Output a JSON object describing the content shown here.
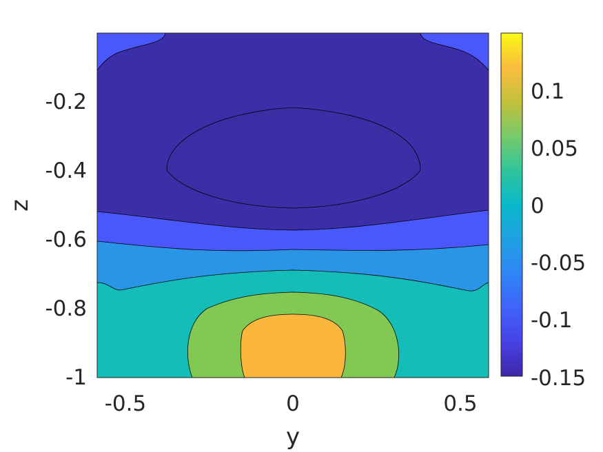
{
  "chart_data": {
    "type": "contourf",
    "xlabel": "y",
    "ylabel": "z",
    "xlim": [
      -0.58,
      0.58
    ],
    "ylim": [
      -1,
      0
    ],
    "x_ticks": [
      -0.5,
      0,
      0.5
    ],
    "x_tick_labels": [
      "-0.5",
      "0",
      "0.5"
    ],
    "y_ticks": [
      -1,
      -0.8,
      -0.6,
      -0.4,
      -0.2
    ],
    "y_tick_labels": [
      "-1",
      "-0.8",
      "-0.6",
      "-0.4",
      "-0.2"
    ],
    "colorbar": {
      "colormap": "parula",
      "range": [
        -0.15,
        0.15
      ],
      "ticks": [
        -0.15,
        -0.1,
        -0.05,
        0,
        0.05,
        0.1
      ],
      "tick_labels": [
        "-0.15",
        "-0.1",
        "-0.05",
        "0",
        "0.05",
        "0.1"
      ]
    },
    "contour_bands": [
      {
        "value": -0.125,
        "color": "#4a58fb",
        "region": "top corners and band z≈-0.52 to -0.6"
      },
      {
        "value": -0.15,
        "color": "#3c2da8",
        "region": "upper core z≈-0.1 to -0.52"
      },
      {
        "value": -0.175,
        "color": "#3b2ea5",
        "region": "inner core z≈-0.22 to -0.5, y≈-0.37 to 0.37"
      },
      {
        "value": -0.075,
        "color": "#2a94e6",
        "region": "band z≈-0.62 to -0.72"
      },
      {
        "value": 0.0,
        "color": "#14bdb8",
        "region": "lower band z≈-0.7 to -1"
      },
      {
        "value": 0.05,
        "color": "#82c953",
        "region": "lower dome y≈-0.3 to 0.3"
      },
      {
        "value": 0.1,
        "color": "#fbb63c",
        "region": "lower core y≈-0.15 to 0.14, z≈-0.82 to -1"
      }
    ]
  }
}
